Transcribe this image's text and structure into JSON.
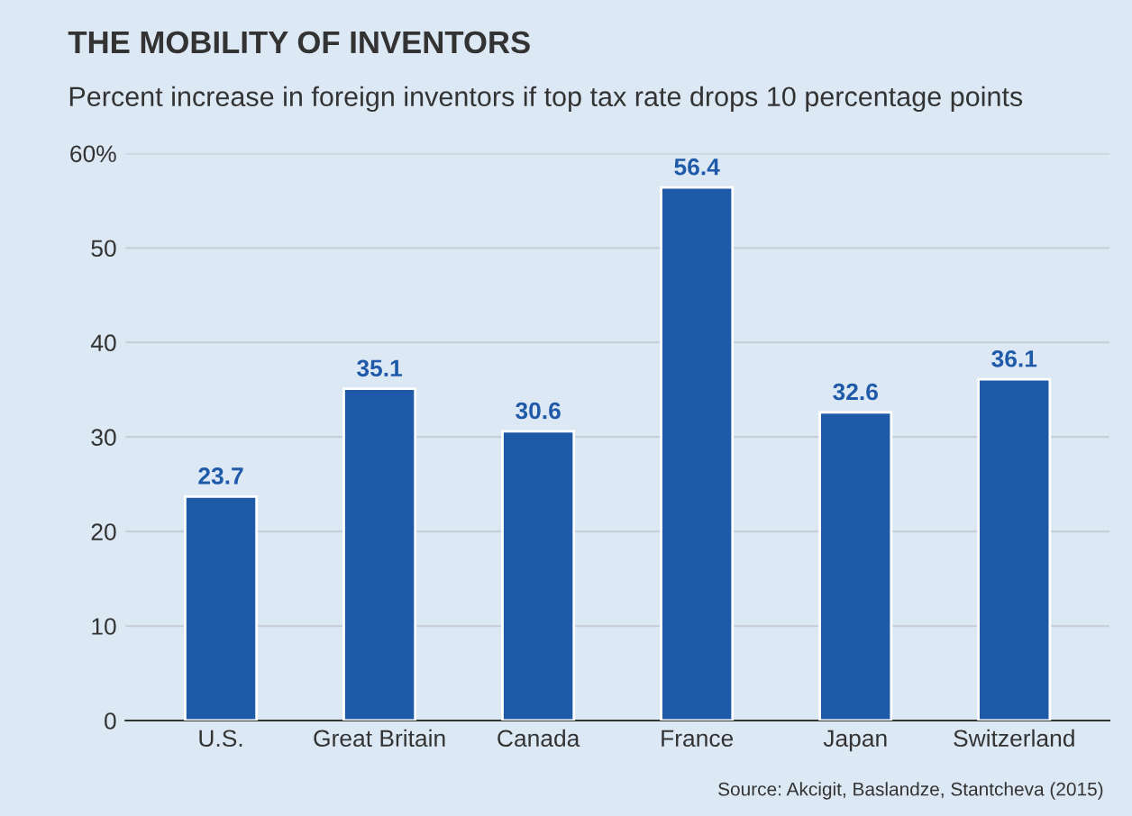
{
  "chart_data": {
    "type": "bar",
    "title": "THE MOBILITY OF INVENTORS",
    "subtitle": "Percent increase in foreign inventors if top tax rate drops 10 percentage points",
    "categories": [
      "U.S.",
      "Great Britain",
      "Canada",
      "France",
      "Japan",
      "Switzerland"
    ],
    "values": [
      23.7,
      35.1,
      30.6,
      56.4,
      32.6,
      36.1
    ],
    "color": "#1f5aa8",
    "ylim": [
      0,
      60
    ],
    "yticks": [
      0,
      10,
      20,
      30,
      40,
      50,
      {
        "value": 60,
        "label": "60%"
      }
    ],
    "grid": "y",
    "data_labels": true,
    "annotations": [
      "Source: Akcigit, Baslandze, Stantcheva (2015)"
    ]
  }
}
